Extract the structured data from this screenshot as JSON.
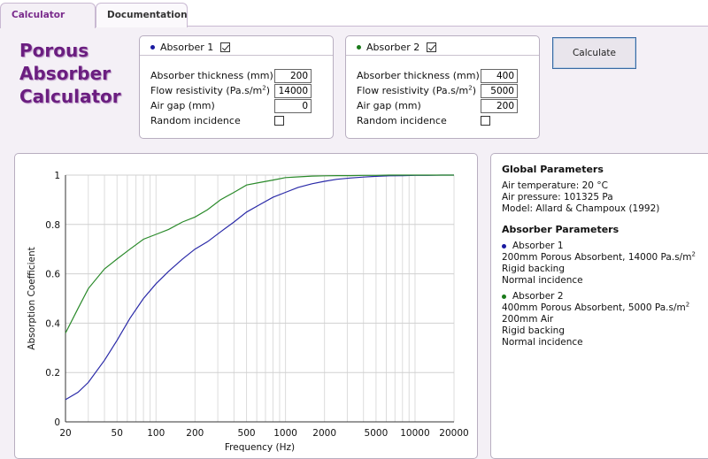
{
  "tabs": [
    {
      "label": "Calculator"
    },
    {
      "label": "Documentation"
    }
  ],
  "app_title": [
    "Porous",
    "Absorber",
    "Calculator"
  ],
  "absorbers": [
    {
      "name": "Absorber 1",
      "color": "#1a1aa0",
      "enabled": true,
      "thickness_label": "Absorber thickness (mm)",
      "thickness": "200",
      "flow_label": "Flow resistivity (Pa.s/m",
      "flow_label_sup": "2",
      "flow_label_end": ")",
      "flow": "14000",
      "airgap_label": "Air gap (mm)",
      "airgap": "0",
      "random_label": "Random incidence",
      "random": false
    },
    {
      "name": "Absorber 2",
      "color": "#1a7a1a",
      "enabled": true,
      "thickness_label": "Absorber thickness (mm)",
      "thickness": "400",
      "flow_label": "Flow resistivity (Pa.s/m",
      "flow_label_sup": "2",
      "flow_label_end": ")",
      "flow": "5000",
      "airgap_label": "Air gap (mm)",
      "airgap": "200",
      "random_label": "Random incidence",
      "random": false
    }
  ],
  "calculate_label": "Calculate",
  "info": {
    "global_title": "Global Parameters",
    "global_lines": [
      "Air temperature: 20 °C",
      "Air pressure: 101325 Pa",
      "Model: Allard & Champoux (1992)"
    ],
    "absorber_title": "Absorber Parameters",
    "abs1_name": "Absorber 1",
    "abs1_line1": "200mm Porous Absorbent, 14000 Pa.s/m",
    "abs1_line1_sup": "2",
    "abs1_line2": "Rigid backing",
    "abs1_line3": "Normal incidence",
    "abs2_name": "Absorber 2",
    "abs2_line1": "400mm Porous Absorbent, 5000 Pa.s/m",
    "abs2_line1_sup": "2",
    "abs2_line2": "200mm Air",
    "abs2_line3": "Rigid backing",
    "abs2_line4": "Normal incidence"
  },
  "chart_data": {
    "type": "line",
    "xlabel": "Frequency (Hz)",
    "ylabel": "Absorption Coefficient",
    "x_scale": "log",
    "xlim": [
      20,
      20000
    ],
    "ylim": [
      0,
      1
    ],
    "x_ticks": [
      20,
      50,
      100,
      200,
      500,
      1000,
      2000,
      5000,
      10000,
      20000
    ],
    "y_ticks": [
      0,
      0.2,
      0.4,
      0.6,
      0.8,
      1
    ],
    "grid": true,
    "series": [
      {
        "name": "Absorber 1",
        "color": "#2a2aa8",
        "x": [
          20,
          25,
          30,
          40,
          50,
          63,
          80,
          100,
          125,
          160,
          200,
          250,
          315,
          400,
          500,
          630,
          800,
          1000,
          1250,
          1600,
          2000,
          2500,
          3150,
          4000,
          5000,
          6300,
          8000,
          10000,
          12500,
          16000,
          20000
        ],
        "y": [
          0.09,
          0.12,
          0.16,
          0.25,
          0.33,
          0.42,
          0.5,
          0.56,
          0.61,
          0.66,
          0.7,
          0.73,
          0.77,
          0.81,
          0.85,
          0.88,
          0.91,
          0.93,
          0.95,
          0.965,
          0.975,
          0.983,
          0.988,
          0.992,
          0.995,
          0.997,
          0.998,
          0.999,
          0.999,
          1.0,
          1.0
        ]
      },
      {
        "name": "Absorber 2",
        "color": "#2a8a2a",
        "x": [
          20,
          25,
          30,
          40,
          50,
          63,
          80,
          100,
          125,
          160,
          200,
          250,
          315,
          400,
          500,
          630,
          800,
          1000,
          1250,
          1600,
          2000,
          2500,
          3150,
          4000,
          5000,
          6300,
          8000,
          10000,
          12500,
          16000,
          20000
        ],
        "y": [
          0.36,
          0.46,
          0.54,
          0.62,
          0.66,
          0.7,
          0.74,
          0.76,
          0.78,
          0.81,
          0.83,
          0.86,
          0.9,
          0.93,
          0.96,
          0.97,
          0.98,
          0.99,
          0.993,
          0.996,
          0.997,
          0.998,
          0.998,
          0.999,
          0.999,
          1.0,
          1.0,
          1.0,
          1.0,
          1.0,
          1.0
        ]
      }
    ]
  }
}
